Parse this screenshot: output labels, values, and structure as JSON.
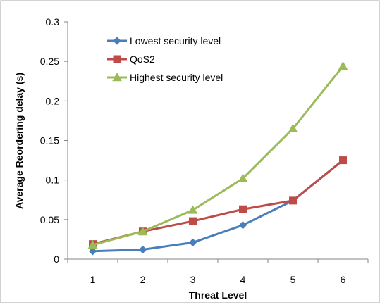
{
  "chart_data": {
    "type": "line",
    "title": "",
    "xlabel": "Threat Level",
    "ylabel": "Average Reordering delay (s)",
    "x": [
      1,
      2,
      3,
      4,
      5,
      6
    ],
    "x_tick_labels": [
      "1",
      "2",
      "3",
      "4",
      "5",
      "6"
    ],
    "ylim": [
      0,
      0.3
    ],
    "y_ticks": [
      0,
      0.05,
      0.1,
      0.15,
      0.2,
      0.25,
      0.3
    ],
    "y_tick_labels": [
      "0",
      "0.05",
      "0.1",
      "0.15",
      "0.2",
      "0.25",
      "0.3"
    ],
    "grid": false,
    "legend_position": "top-left",
    "series": [
      {
        "name": "Lowest security level",
        "values": [
          0.01,
          0.012,
          0.021,
          0.043,
          0.074,
          0.125
        ],
        "color": "#4a7ebb",
        "marker": "diamond"
      },
      {
        "name": "QoS2",
        "values": [
          0.019,
          0.035,
          0.048,
          0.063,
          0.074,
          0.125
        ],
        "color": "#be4b48",
        "marker": "square"
      },
      {
        "name": "Highest security level",
        "values": [
          0.018,
          0.035,
          0.062,
          0.102,
          0.165,
          0.244
        ],
        "color": "#9bbb59",
        "marker": "triangle"
      }
    ]
  }
}
